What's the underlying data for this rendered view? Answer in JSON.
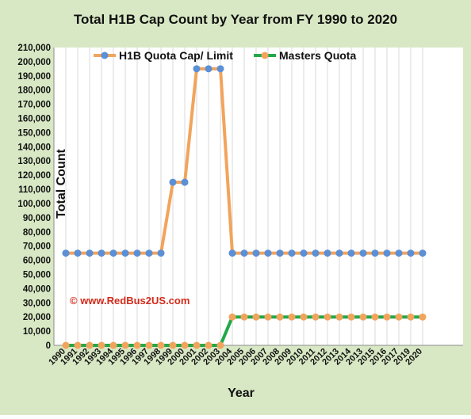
{
  "chart_data": {
    "type": "line",
    "title": "Total H1B Cap Count  by Year from FY 1990 to 2020",
    "xlabel": "Year",
    "ylabel": "Total Count",
    "ylim": [
      0,
      210000
    ],
    "ytick_step": 10000,
    "yticks": [
      "0",
      "10,000",
      "20,000",
      "30,000",
      "40,000",
      "50,000",
      "60,000",
      "70,000",
      "80,000",
      "90,000",
      "100,000",
      "110,000",
      "120,000",
      "130,000",
      "140,000",
      "150,000",
      "160,000",
      "170,000",
      "180,000",
      "190,000",
      "200,000",
      "210,000"
    ],
    "categories": [
      "1990",
      "1991",
      "1992",
      "1993",
      "1994",
      "1995",
      "1996",
      "1997",
      "1998",
      "1999",
      "2000",
      "2001",
      "2002",
      "2003",
      "2004",
      "2005",
      "2006",
      "2007",
      "2008",
      "2009",
      "2010",
      "2011",
      "2012",
      "2013",
      "2014",
      "2013",
      "2015",
      "2016",
      "2017",
      "2019",
      "2020"
    ],
    "grid": "vertical",
    "legend_position": "top",
    "series": [
      {
        "name": "H1B Quota Cap/ Limit",
        "line_color": "#f2a45c",
        "marker_color": "#5b8fd6",
        "values": [
          65000,
          65000,
          65000,
          65000,
          65000,
          65000,
          65000,
          65000,
          65000,
          115000,
          115000,
          195000,
          195000,
          195000,
          65000,
          65000,
          65000,
          65000,
          65000,
          65000,
          65000,
          65000,
          65000,
          65000,
          65000,
          65000,
          65000,
          65000,
          65000,
          65000,
          65000
        ]
      },
      {
        "name": "Masters Quota",
        "line_color": "#22a84a",
        "marker_color": "#f2a45c",
        "values": [
          0,
          0,
          0,
          0,
          0,
          0,
          0,
          0,
          0,
          0,
          0,
          0,
          0,
          0,
          20000,
          20000,
          20000,
          20000,
          20000,
          20000,
          20000,
          20000,
          20000,
          20000,
          20000,
          20000,
          20000,
          20000,
          20000,
          20000,
          20000
        ]
      }
    ],
    "annotations": [
      "© www.RedBus2US.com"
    ],
    "colors": {
      "outer_background": "#d8e8c4",
      "plot_background": "#ffffff",
      "gridline": "#d9d9d9",
      "watermark": "#d42a1a"
    }
  }
}
